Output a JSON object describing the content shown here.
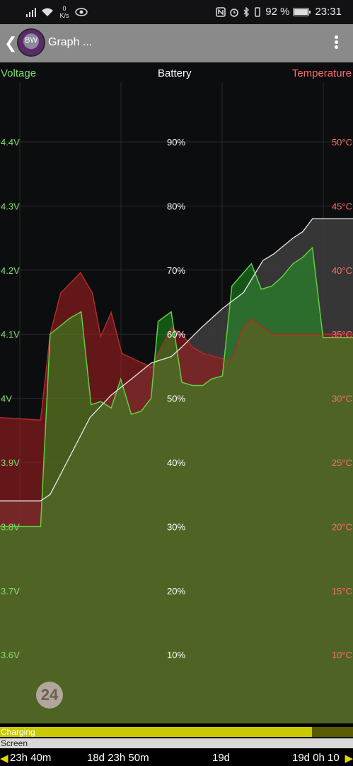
{
  "statusbar": {
    "net_speed_value": "0",
    "net_speed_unit": "K/s",
    "battery_percent": "92 %",
    "time": "23:31",
    "icons": [
      "signal-icon",
      "wifi-icon",
      "eye-icon",
      "nfc-icon",
      "alarm-icon",
      "bluetooth-icon",
      "vibrate-icon",
      "battery-icon"
    ]
  },
  "appbar": {
    "logo_text": "BW",
    "title": "Graph ..."
  },
  "chart_data": {
    "type": "area",
    "headers": {
      "left": "Voltage",
      "center": "Battery",
      "right": "Temperature"
    },
    "colors": {
      "voltage": "#7ddf6a",
      "battery": "#ffffff",
      "temperature": "#ff6a6a"
    },
    "grid": true,
    "voltage_ticks": [
      "4.4V",
      "4.3V",
      "4.2V",
      "4.1V",
      "4V",
      "3.9V",
      "3.8V",
      "3.7V",
      "3.6V"
    ],
    "battery_ticks": [
      "90%",
      "80%",
      "70%",
      "60%",
      "50%",
      "40%",
      "30%",
      "20%",
      "10%"
    ],
    "temperature_ticks": [
      "50°C",
      "45°C",
      "40°C",
      "35°C",
      "30°C",
      "25°C",
      "20°C",
      "15°C",
      "10°C"
    ],
    "series": [
      {
        "name": "Voltage",
        "unit": "V",
        "points": [
          [
            0.0,
            3.8
          ],
          [
            0.115,
            3.8
          ],
          [
            0.142,
            4.1
          ],
          [
            0.198,
            4.125
          ],
          [
            0.23,
            4.135
          ],
          [
            0.258,
            3.99
          ],
          [
            0.285,
            3.995
          ],
          [
            0.315,
            3.985
          ],
          [
            0.342,
            4.03
          ],
          [
            0.372,
            3.975
          ],
          [
            0.4,
            3.98
          ],
          [
            0.428,
            4.0
          ],
          [
            0.448,
            4.12
          ],
          [
            0.485,
            4.135
          ],
          [
            0.515,
            4.025
          ],
          [
            0.545,
            4.02
          ],
          [
            0.575,
            4.02
          ],
          [
            0.598,
            4.03
          ],
          [
            0.63,
            4.035
          ],
          [
            0.657,
            4.175
          ],
          [
            0.712,
            4.21
          ],
          [
            0.74,
            4.17
          ],
          [
            0.77,
            4.175
          ],
          [
            0.8,
            4.19
          ],
          [
            0.83,
            4.21
          ],
          [
            0.858,
            4.22
          ],
          [
            0.885,
            4.235
          ],
          [
            0.915,
            4.095
          ],
          [
            1.0,
            4.095
          ]
        ]
      },
      {
        "name": "Temperature",
        "unit": "°C",
        "points": [
          [
            0.0,
            28.5
          ],
          [
            0.115,
            28.3
          ],
          [
            0.142,
            35.0
          ],
          [
            0.172,
            38.2
          ],
          [
            0.228,
            39.8
          ],
          [
            0.262,
            38.2
          ],
          [
            0.285,
            34.8
          ],
          [
            0.315,
            36.7
          ],
          [
            0.345,
            33.5
          ],
          [
            0.43,
            32.4
          ],
          [
            0.457,
            34.0
          ],
          [
            0.485,
            35.5
          ],
          [
            0.515,
            35.0
          ],
          [
            0.545,
            34.0
          ],
          [
            0.575,
            33.5
          ],
          [
            0.63,
            33.1
          ],
          [
            0.657,
            33.0
          ],
          [
            0.688,
            35.5
          ],
          [
            0.712,
            36.2
          ],
          [
            0.77,
            35.0
          ],
          [
            1.0,
            35.0
          ]
        ]
      },
      {
        "name": "Battery",
        "unit": "%",
        "points": [
          [
            0.0,
            34.0
          ],
          [
            0.115,
            34.0
          ],
          [
            0.142,
            35.0
          ],
          [
            0.255,
            47.0
          ],
          [
            0.315,
            50.5
          ],
          [
            0.372,
            53.0
          ],
          [
            0.428,
            55.5
          ],
          [
            0.485,
            56.5
          ],
          [
            0.515,
            58.0
          ],
          [
            0.57,
            61.0
          ],
          [
            0.63,
            64.0
          ],
          [
            0.69,
            66.5
          ],
          [
            0.745,
            71.5
          ],
          [
            0.775,
            72.5
          ],
          [
            0.83,
            75.0
          ],
          [
            0.858,
            76.0
          ],
          [
            0.885,
            78.0
          ],
          [
            1.0,
            78.0
          ]
        ]
      }
    ],
    "battery_fill_color": "#3b3b3b"
  },
  "badge": "24",
  "status_rows": [
    {
      "label": "Charging",
      "color": "#c9c900",
      "fraction": 0.885
    },
    {
      "label": "Screen",
      "color": "#d8d8d8",
      "fraction": 1.0
    }
  ],
  "timeline": {
    "arrow_left": "◀",
    "arrow_right": "▶",
    "labels": [
      "23h 40m",
      "18d 23h 50m",
      "19d",
      "19d 0h 10"
    ]
  }
}
